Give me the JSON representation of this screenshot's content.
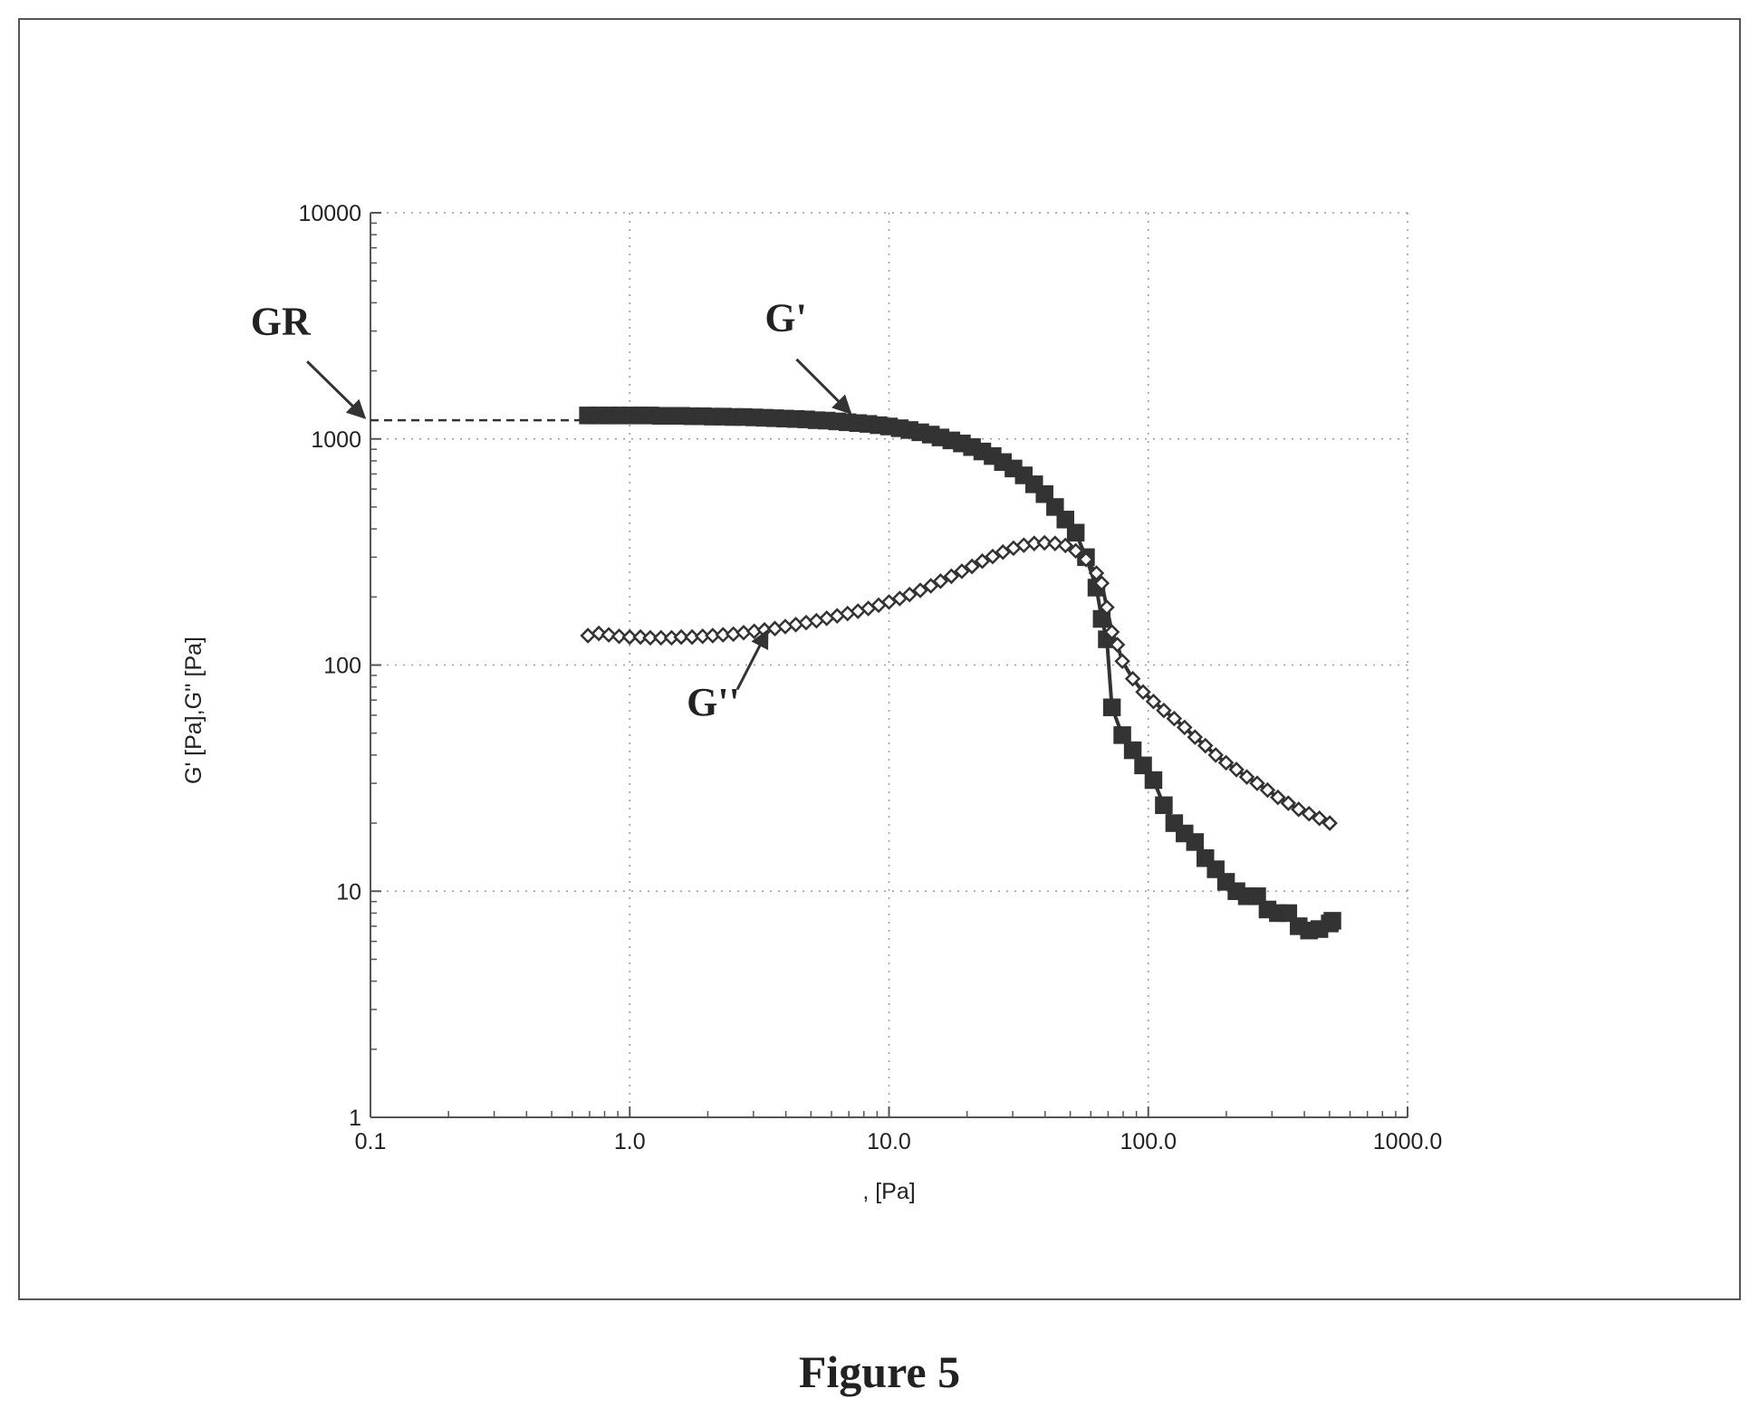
{
  "figure_caption": "Figure 5",
  "chart_data": {
    "type": "line",
    "title": "",
    "xlabel": ",  [Pa]",
    "ylabel": "G' [Pa],G'' [Pa]",
    "x_scale": "log",
    "y_scale": "log",
    "xlim": [
      0.1,
      1000
    ],
    "ylim": [
      1,
      10000
    ],
    "grid": true,
    "x_ticks": [
      {
        "value": 0.1,
        "label": "0.1"
      },
      {
        "value": 1,
        "label": "1.0"
      },
      {
        "value": 10,
        "label": "10.0"
      },
      {
        "value": 100,
        "label": "100.0"
      },
      {
        "value": 1000,
        "label": "1000.0"
      }
    ],
    "y_ticks": [
      {
        "value": 1,
        "label": "1"
      },
      {
        "value": 10,
        "label": "10"
      },
      {
        "value": 100,
        "label": "100"
      },
      {
        "value": 1000,
        "label": "1000"
      },
      {
        "value": 10000,
        "label": "10000"
      }
    ],
    "colors": {
      "line": "#333333",
      "grid": "#999999",
      "axis": "#555555",
      "marker_fill": "#333333"
    },
    "series": [
      {
        "name": "G'",
        "marker": "filled-square",
        "points": [
          [
            0.69,
            1270
          ],
          [
            0.76,
            1270
          ],
          [
            0.83,
            1270
          ],
          [
            0.91,
            1270
          ],
          [
            1.0,
            1270
          ],
          [
            1.1,
            1270
          ],
          [
            1.2,
            1270
          ],
          [
            1.32,
            1265
          ],
          [
            1.45,
            1265
          ],
          [
            1.58,
            1265
          ],
          [
            1.74,
            1260
          ],
          [
            1.91,
            1260
          ],
          [
            2.09,
            1255
          ],
          [
            2.29,
            1255
          ],
          [
            2.51,
            1250
          ],
          [
            2.75,
            1250
          ],
          [
            3.02,
            1245
          ],
          [
            3.31,
            1240
          ],
          [
            3.63,
            1235
          ],
          [
            3.98,
            1230
          ],
          [
            4.37,
            1225
          ],
          [
            4.79,
            1220
          ],
          [
            5.25,
            1210
          ],
          [
            5.75,
            1205
          ],
          [
            6.31,
            1195
          ],
          [
            6.92,
            1185
          ],
          [
            7.59,
            1175
          ],
          [
            8.32,
            1165
          ],
          [
            9.12,
            1150
          ],
          [
            10.0,
            1135
          ],
          [
            11.0,
            1115
          ],
          [
            12.0,
            1095
          ],
          [
            13.2,
            1070
          ],
          [
            14.5,
            1045
          ],
          [
            15.8,
            1015
          ],
          [
            17.4,
            985
          ],
          [
            19.1,
            955
          ],
          [
            20.9,
            920
          ],
          [
            22.9,
            880
          ],
          [
            25.1,
            840
          ],
          [
            27.5,
            790
          ],
          [
            30.2,
            740
          ],
          [
            33.1,
            690
          ],
          [
            36.3,
            630
          ],
          [
            39.8,
            570
          ],
          [
            43.7,
            500
          ],
          [
            47.9,
            440
          ],
          [
            52.5,
            385
          ],
          [
            57.5,
            300
          ],
          [
            63.1,
            220
          ],
          [
            66.1,
            160
          ],
          [
            69.2,
            130
          ],
          [
            72.4,
            65
          ],
          [
            79.4,
            49
          ],
          [
            87.1,
            42
          ],
          [
            95.5,
            36
          ],
          [
            104.7,
            31
          ],
          [
            114.8,
            24
          ],
          [
            125.9,
            20
          ],
          [
            138.0,
            18
          ],
          [
            151.4,
            16.5
          ],
          [
            166.0,
            14
          ],
          [
            182.0,
            12.5
          ],
          [
            199.5,
            11
          ],
          [
            218.8,
            10
          ],
          [
            239.9,
            9.5
          ],
          [
            263.0,
            9.5
          ],
          [
            288.4,
            8.3
          ],
          [
            316.2,
            8.0
          ],
          [
            346.7,
            8.0
          ],
          [
            380.2,
            7.0
          ],
          [
            416.9,
            6.7
          ],
          [
            457.1,
            6.8
          ],
          [
            501.2,
            7.2
          ],
          [
            512.9,
            7.4
          ]
        ]
      },
      {
        "name": "G''",
        "marker": "open-diamond",
        "points": [
          [
            0.69,
            135
          ],
          [
            0.76,
            138
          ],
          [
            0.83,
            136
          ],
          [
            0.91,
            134
          ],
          [
            1.0,
            133
          ],
          [
            1.1,
            133
          ],
          [
            1.2,
            132
          ],
          [
            1.32,
            132
          ],
          [
            1.45,
            132
          ],
          [
            1.58,
            133
          ],
          [
            1.74,
            133
          ],
          [
            1.91,
            134
          ],
          [
            2.09,
            135
          ],
          [
            2.29,
            136
          ],
          [
            2.51,
            137
          ],
          [
            2.75,
            139
          ],
          [
            3.02,
            141
          ],
          [
            3.31,
            143
          ],
          [
            3.63,
            145
          ],
          [
            3.98,
            148
          ],
          [
            4.37,
            151
          ],
          [
            4.79,
            154
          ],
          [
            5.25,
            157
          ],
          [
            5.75,
            161
          ],
          [
            6.31,
            165
          ],
          [
            6.92,
            169
          ],
          [
            7.59,
            173
          ],
          [
            8.32,
            178
          ],
          [
            9.12,
            184
          ],
          [
            10.0,
            190
          ],
          [
            11.0,
            197
          ],
          [
            12.0,
            205
          ],
          [
            13.2,
            214
          ],
          [
            14.5,
            224
          ],
          [
            15.8,
            235
          ],
          [
            17.4,
            247
          ],
          [
            19.1,
            260
          ],
          [
            20.9,
            273
          ],
          [
            22.9,
            288
          ],
          [
            25.1,
            302
          ],
          [
            27.5,
            316
          ],
          [
            30.2,
            329
          ],
          [
            33.1,
            339
          ],
          [
            36.3,
            345
          ],
          [
            39.8,
            347
          ],
          [
            43.7,
            345
          ],
          [
            47.9,
            338
          ],
          [
            52.5,
            320
          ],
          [
            57.5,
            293
          ],
          [
            63.1,
            255
          ],
          [
            66.1,
            230
          ],
          [
            69.2,
            180
          ],
          [
            72.4,
            140
          ],
          [
            76.0,
            123
          ],
          [
            79.4,
            104
          ],
          [
            87.1,
            87
          ],
          [
            95.5,
            76
          ],
          [
            104.7,
            69
          ],
          [
            114.8,
            63
          ],
          [
            125.9,
            58
          ],
          [
            138.0,
            53
          ],
          [
            151.4,
            48
          ],
          [
            166.0,
            44
          ],
          [
            182.0,
            40
          ],
          [
            199.5,
            37
          ],
          [
            218.8,
            34.5
          ],
          [
            239.9,
            32
          ],
          [
            263.0,
            30
          ],
          [
            288.4,
            28
          ],
          [
            316.2,
            26
          ],
          [
            346.7,
            24.5
          ],
          [
            380.2,
            23
          ],
          [
            416.9,
            22
          ],
          [
            457.1,
            21
          ],
          [
            501.2,
            20
          ]
        ]
      }
    ],
    "annotations": [
      {
        "label": "GR",
        "kind": "dashed-reference",
        "y": 1210,
        "x_from": 0.1,
        "x_to": 0.69,
        "text_at": [
          0.045,
          2900
        ],
        "arrow_tail": [
          0.057,
          2200
        ],
        "arrow_head": [
          0.095,
          1240
        ]
      },
      {
        "label": "G'",
        "kind": "callout",
        "text_at": [
          4.0,
          3000
        ],
        "arrow_tail": [
          4.4,
          2250
        ],
        "arrow_head": [
          7.1,
          1300
        ]
      },
      {
        "label": "G''",
        "kind": "callout",
        "text_at": [
          2.1,
          60
        ],
        "arrow_tail": [
          2.6,
          78
        ],
        "arrow_head": [
          3.4,
          142
        ]
      }
    ]
  }
}
